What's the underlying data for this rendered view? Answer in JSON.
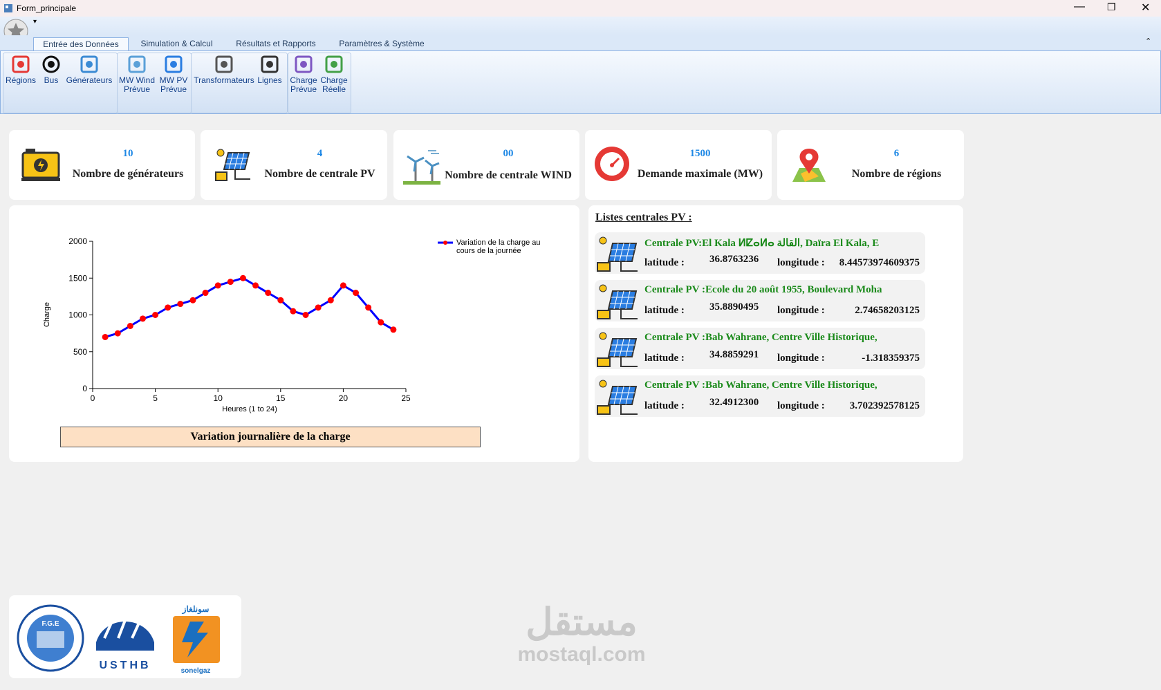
{
  "window": {
    "title": "Form_principale"
  },
  "ribbon": {
    "tabs": [
      "Entrée des Données",
      "Simulation & Calcul",
      "Résultats et Rapports",
      "Paramètres & Système"
    ],
    "buttons": [
      "Régions",
      "Bus",
      "Générateurs",
      "MW Wind Prévue",
      "MW PV Prévue",
      "Transformateurs",
      "Lignes",
      "Charge Prévue",
      "Charge Réelle"
    ]
  },
  "cards": [
    {
      "value": "10",
      "label": "Nombre de générateurs"
    },
    {
      "value": "4",
      "label": "Nombre de centrale PV"
    },
    {
      "value": "00",
      "label": "Nombre de centrale WIND"
    },
    {
      "value": "1500",
      "label": "Demande maximale (MW)"
    },
    {
      "value": "6",
      "label": "Nombre de régions"
    }
  ],
  "chart_data": {
    "type": "line",
    "caption": "Variation journalière de la charge",
    "x_label": "Heures (1 to 24)",
    "y_label": "Charge",
    "x": [
      1,
      2,
      3,
      4,
      5,
      6,
      7,
      8,
      9,
      10,
      11,
      12,
      13,
      14,
      15,
      16,
      17,
      18,
      19,
      20,
      21,
      22,
      23,
      24
    ],
    "series": [
      {
        "name": "Variation de la charge au cours de la journée",
        "color": "#0000ff",
        "marker_color": "#ff0000",
        "values": [
          700,
          750,
          850,
          950,
          1000,
          1100,
          1150,
          1200,
          1300,
          1400,
          1450,
          1500,
          1400,
          1300,
          1200,
          1050,
          1000,
          1100,
          1200,
          1400,
          1300,
          1100,
          900,
          800
        ]
      }
    ],
    "xlim": [
      0,
      25
    ],
    "xticks": [
      0,
      5,
      10,
      15,
      20,
      25
    ],
    "ylim": [
      0,
      2000
    ],
    "yticks": [
      0,
      500,
      1000,
      1500,
      2000
    ],
    "grid": false
  },
  "pv_list": {
    "title": "Listes centrales PV :",
    "latitude_label": "latitude :",
    "longitude_label": "longitude :",
    "items": [
      {
        "name": "Centrale PV:El Kala ⵍⵇⴰⵍⴰ القالة, Daïra El Kala, E",
        "latitude": "36.8763236",
        "longitude": "8.44573974609375"
      },
      {
        "name": "Centrale PV :Ecole du 20 août 1955, Boulevard Moha",
        "latitude": "35.8890495",
        "longitude": "2.74658203125"
      },
      {
        "name": "Centrale PV :Bab Wahrane, Centre Ville Historique,",
        "latitude": "34.8859291",
        "longitude": "-1.318359375"
      },
      {
        "name": "Centrale PV :Bab Wahrane, Centre Ville Historique,",
        "latitude": "32.4912300",
        "longitude": "3.702392578125"
      }
    ]
  },
  "logos": {
    "fge": "F.G.E",
    "usthb": "USTHB",
    "sonelgaz": "sonelgaz",
    "sonelgaz_ar": "سونلغاز"
  },
  "watermark": {
    "arabic": "مستقل",
    "latin": "mostaql.com"
  }
}
